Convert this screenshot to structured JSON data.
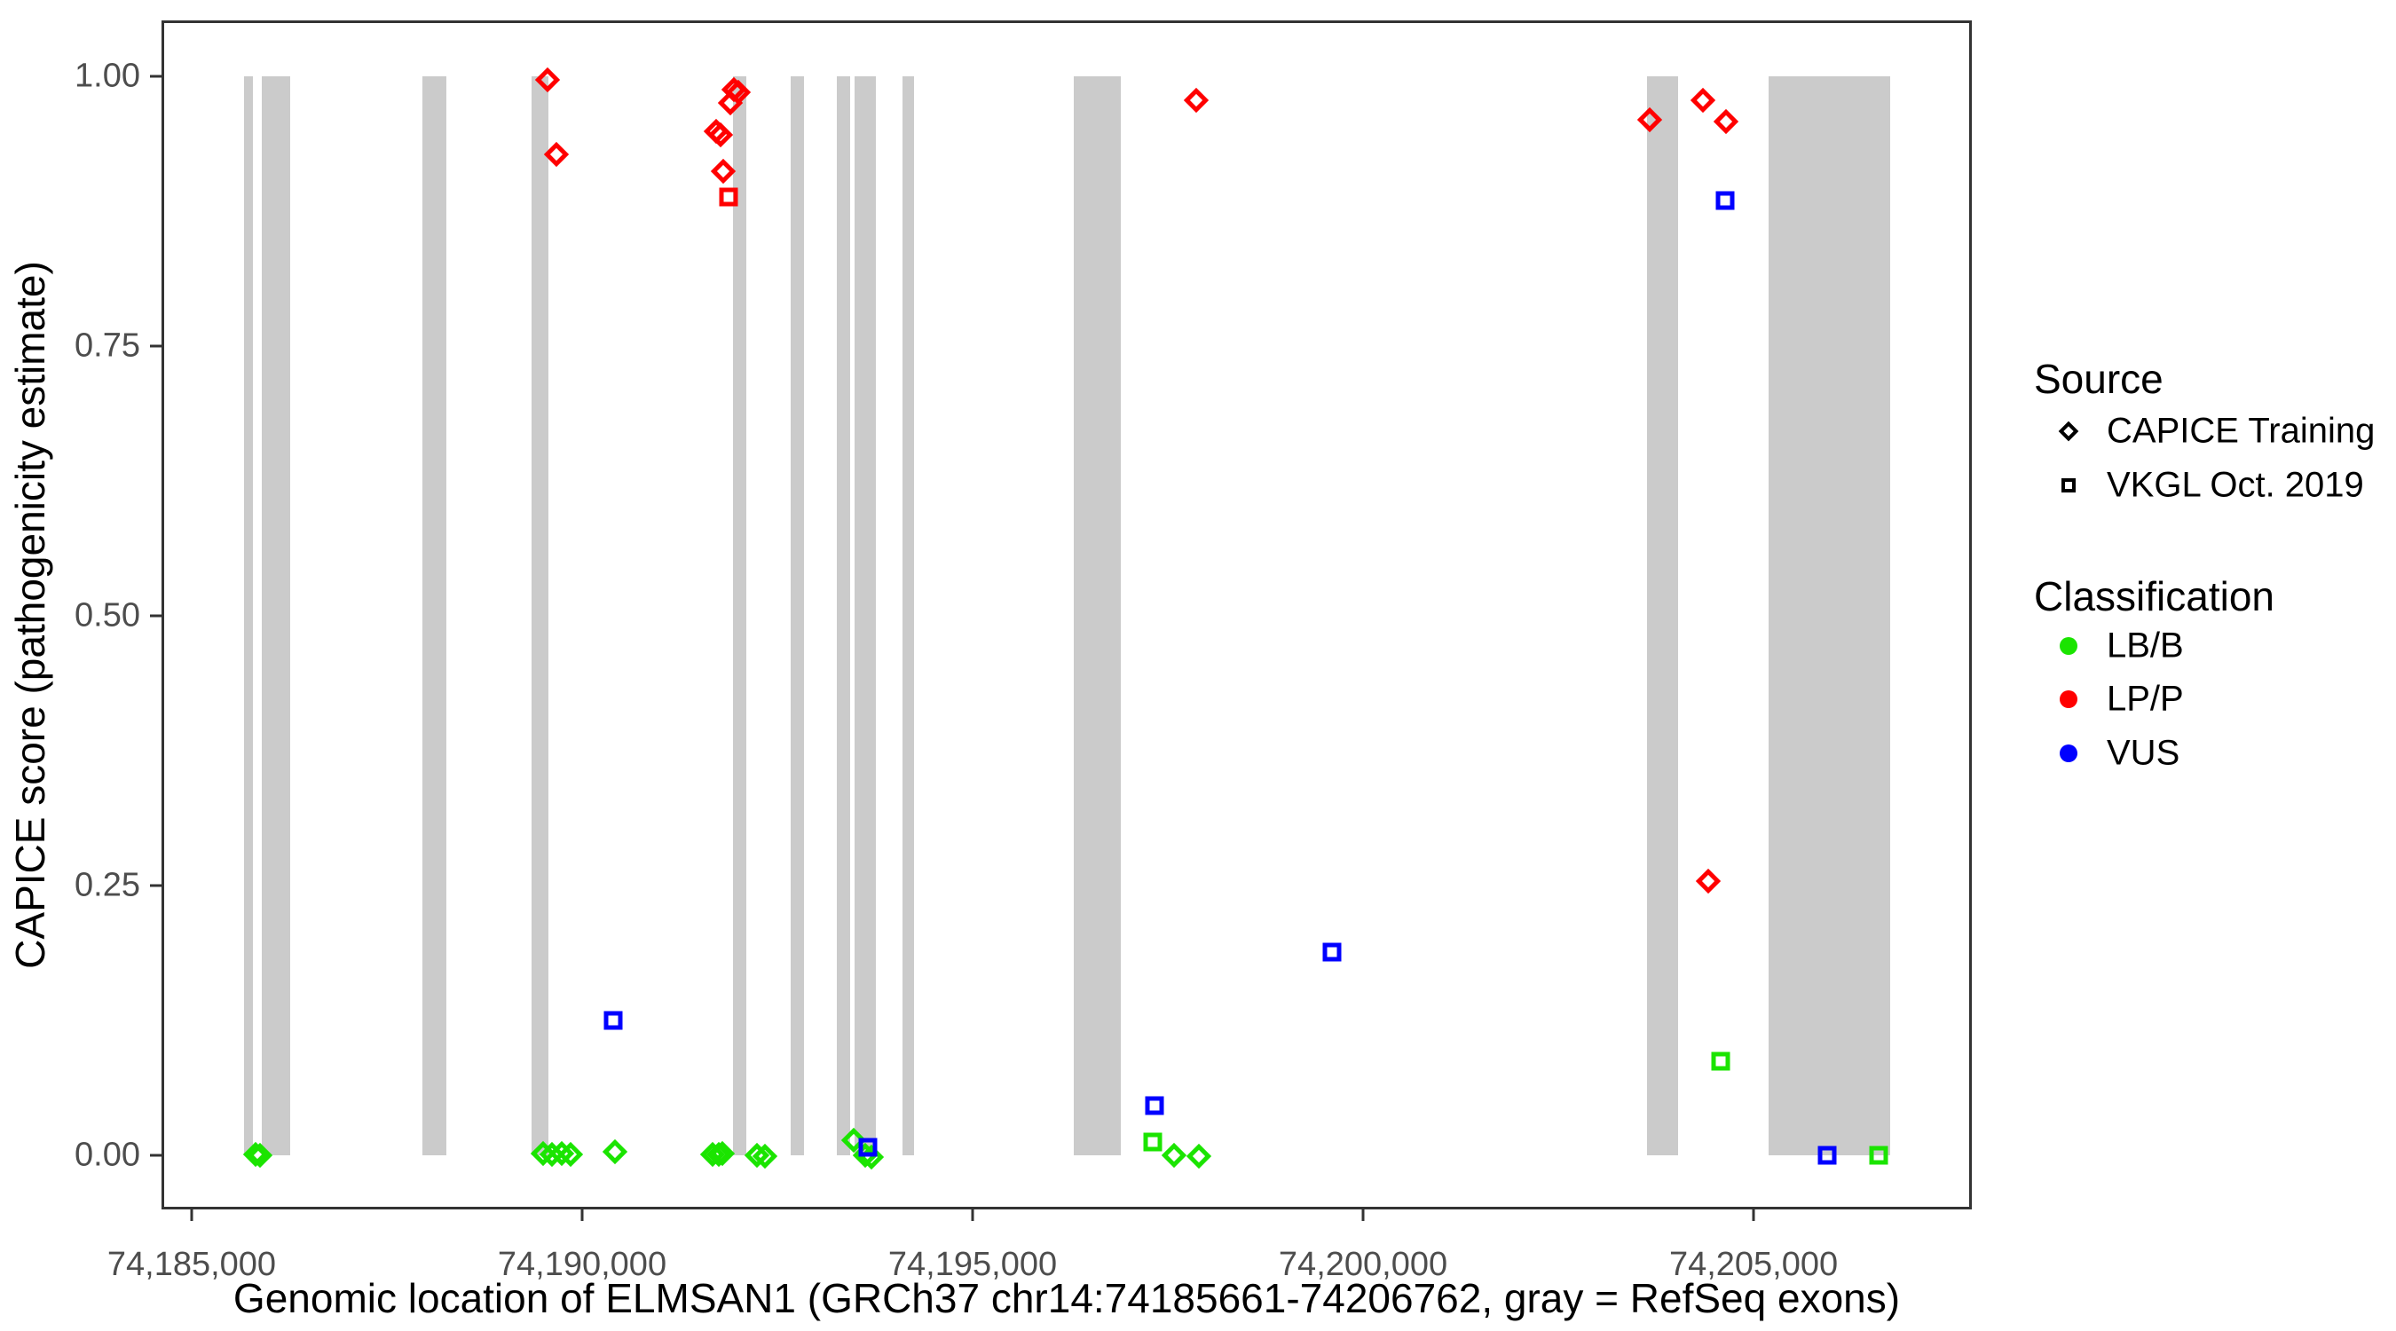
{
  "chart_data": {
    "type": "scatter",
    "x_axis": {
      "label": "Genomic location of ELMSAN1 (GRCh37 chr14:74185661-74206762, gray = RefSeq exons)",
      "range": [
        74184614,
        74207795
      ],
      "ticks": [
        {
          "value": 74185000,
          "label": "74,185,000"
        },
        {
          "value": 74190000,
          "label": "74,190,000"
        },
        {
          "value": 74195000,
          "label": "74,195,000"
        },
        {
          "value": 74200000,
          "label": "74,200,000"
        },
        {
          "value": 74205000,
          "label": "74,205,000"
        }
      ]
    },
    "y_axis": {
      "label": "CAPICE score (pathogenicity estimate)",
      "range": [
        -0.0502,
        1.0518
      ],
      "ticks": [
        {
          "value": 0,
          "label": "0.00"
        },
        {
          "value": 0.25,
          "label": "0.25"
        },
        {
          "value": 0.5,
          "label": "0.50"
        },
        {
          "value": 0.75,
          "label": "0.75"
        },
        {
          "value": 1,
          "label": "1.00"
        }
      ]
    },
    "colors": {
      "LB/B": "#1BE400",
      "LP/P": "#FF0000",
      "VUS": "#0000FF",
      "exon": "#CBCBCB",
      "axis_text": "#4D4D4D",
      "panel_border": "#333333"
    },
    "exons": [
      [
        74185670,
        74185784
      ],
      [
        74185898,
        74186261
      ],
      [
        74187955,
        74188261
      ],
      [
        74189352,
        74189568
      ],
      [
        74191932,
        74192102
      ],
      [
        74192670,
        74192841
      ],
      [
        74193261,
        74193432
      ],
      [
        74193489,
        74193761
      ],
      [
        74194102,
        74194250
      ],
      [
        74196295,
        74196898
      ],
      [
        74203636,
        74204034
      ],
      [
        74205193,
        74206750
      ]
    ],
    "series": [
      {
        "name": "CAPICE Training",
        "marker": "diamond",
        "points": [
          {
            "x": 74189557,
            "y": 0.997,
            "cls": "LP/P"
          },
          {
            "x": 74189670,
            "y": 0.928,
            "cls": "LP/P"
          },
          {
            "x": 74191715,
            "y": 0.949,
            "cls": "LP/P"
          },
          {
            "x": 74191772,
            "y": 0.946,
            "cls": "LP/P"
          },
          {
            "x": 74191806,
            "y": 0.912,
            "cls": "LP/P"
          },
          {
            "x": 74191898,
            "y": 0.975,
            "cls": "LP/P"
          },
          {
            "x": 74191943,
            "y": 0.988,
            "cls": "LP/P"
          },
          {
            "x": 74192000,
            "y": 0.985,
            "cls": "LP/P"
          },
          {
            "x": 74197864,
            "y": 0.978,
            "cls": "LP/P"
          },
          {
            "x": 74203670,
            "y": 0.96,
            "cls": "LP/P"
          },
          {
            "x": 74204352,
            "y": 0.978,
            "cls": "LP/P"
          },
          {
            "x": 74204647,
            "y": 0.958,
            "cls": "LP/P"
          },
          {
            "x": 74204420,
            "y": 0.254,
            "cls": "LP/P"
          },
          {
            "x": 74185820,
            "y": 0.001,
            "cls": "LB/B"
          },
          {
            "x": 74185872,
            "y": 0.0,
            "cls": "LB/B"
          },
          {
            "x": 74189500,
            "y": 0.002,
            "cls": "LB/B"
          },
          {
            "x": 74189614,
            "y": 0.001,
            "cls": "LB/B"
          },
          {
            "x": 74189739,
            "y": 0.002,
            "cls": "LB/B"
          },
          {
            "x": 74189852,
            "y": 0.001,
            "cls": "LB/B"
          },
          {
            "x": 74190420,
            "y": 0.003,
            "cls": "LB/B"
          },
          {
            "x": 74191670,
            "y": 0.001,
            "cls": "LB/B"
          },
          {
            "x": 74191750,
            "y": 0.001,
            "cls": "LB/B"
          },
          {
            "x": 74191795,
            "y": 0.002,
            "cls": "LB/B"
          },
          {
            "x": 74192238,
            "y": 0.0,
            "cls": "LB/B"
          },
          {
            "x": 74192341,
            "y": -0.001,
            "cls": "LB/B"
          },
          {
            "x": 74193477,
            "y": 0.014,
            "cls": "LB/B"
          },
          {
            "x": 74193625,
            "y": 0.0,
            "cls": "LB/B"
          },
          {
            "x": 74193705,
            "y": -0.002,
            "cls": "LB/B"
          },
          {
            "x": 74197580,
            "y": 0.0,
            "cls": "LB/B"
          },
          {
            "x": 74197898,
            "y": -0.001,
            "cls": "LB/B"
          }
        ]
      },
      {
        "name": "VKGL Oct. 2019",
        "marker": "square",
        "points": [
          {
            "x": 74191875,
            "y": 0.888,
            "cls": "LP/P"
          },
          {
            "x": 74190400,
            "y": 0.125,
            "cls": "VUS"
          },
          {
            "x": 74193659,
            "y": 0.007,
            "cls": "VUS"
          },
          {
            "x": 74197330,
            "y": 0.046,
            "cls": "VUS"
          },
          {
            "x": 74199600,
            "y": 0.188,
            "cls": "VUS"
          },
          {
            "x": 74204636,
            "y": 0.885,
            "cls": "VUS"
          },
          {
            "x": 74205943,
            "y": 0.0,
            "cls": "VUS"
          },
          {
            "x": 74197307,
            "y": 0.012,
            "cls": "LB/B"
          },
          {
            "x": 74204580,
            "y": 0.087,
            "cls": "LB/B"
          },
          {
            "x": 74206602,
            "y": 0.0,
            "cls": "LB/B"
          }
        ]
      }
    ]
  },
  "legend": {
    "source": {
      "title": "Source",
      "items": [
        {
          "marker": "diamond",
          "label": "CAPICE Training"
        },
        {
          "marker": "square",
          "label": "VKGL Oct. 2019"
        }
      ]
    },
    "classification": {
      "title": "Classification",
      "items": [
        {
          "label": "LB/B",
          "color": "#1BE400"
        },
        {
          "label": "LP/P",
          "color": "#FF0000"
        },
        {
          "label": "VUS",
          "color": "#0000FF"
        }
      ]
    }
  }
}
